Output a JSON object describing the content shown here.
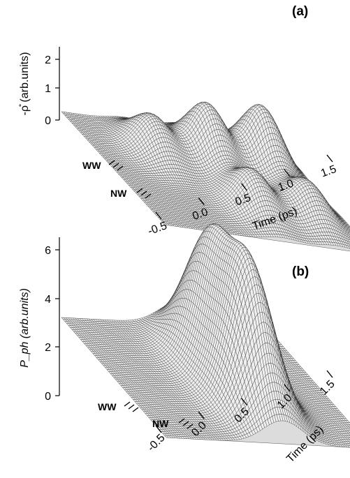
{
  "chart_data": [
    {
      "panel": "(a)",
      "type": "surface3d",
      "zlabel": "-ρ̊ (arb.units)",
      "xlabel": "Time (ps)",
      "x_ticks": [
        "-0.5",
        "0.0",
        "0.5",
        "1.0",
        "1.5"
      ],
      "x_range": [
        -0.7,
        1.6
      ],
      "z_ticks": [
        "0",
        "1",
        "2"
      ],
      "z_range": [
        0,
        2.5
      ],
      "y_categories": [
        "WW",
        "NW"
      ],
      "peaks": [
        {
          "t": 0.0,
          "row": "WW",
          "height": 1.3
        },
        {
          "t": 0.6,
          "row": "WW",
          "height": 2.0
        },
        {
          "t": 1.2,
          "row": "WW",
          "height": 2.2
        },
        {
          "t": 0.6,
          "row": "NW",
          "height": 1.4
        },
        {
          "t": 1.2,
          "row": "NW",
          "height": 1.3
        }
      ]
    },
    {
      "panel": "(b)",
      "type": "surface3d",
      "zlabel": "P_ph (arb.units)",
      "xlabel": "Time (ps)",
      "x_ticks": [
        "-0.5",
        "0.0",
        "0.5",
        "1.0",
        "1.5"
      ],
      "x_range": [
        -0.7,
        1.6
      ],
      "z_ticks": [
        "0",
        "2",
        "4",
        "6"
      ],
      "z_range": [
        0,
        7
      ],
      "y_categories": [
        "WW",
        "NW"
      ],
      "peaks": [
        {
          "t": 0.6,
          "row": "WW",
          "height": 5.2
        },
        {
          "t": 0.6,
          "row": "NW",
          "height": 5.7
        }
      ]
    }
  ]
}
